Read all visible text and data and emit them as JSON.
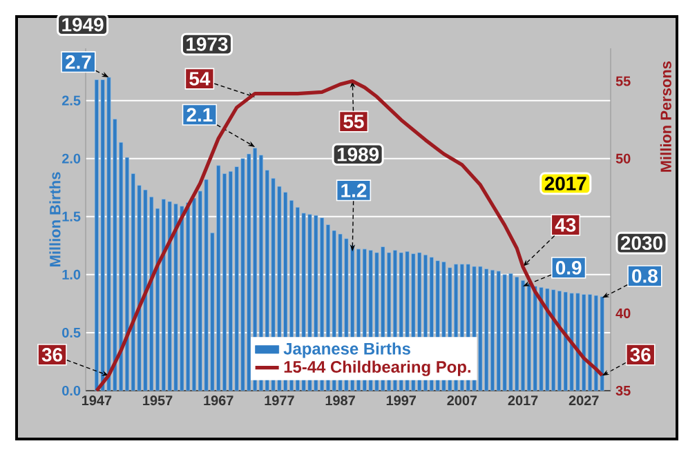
{
  "chart_data": {
    "type": "bar",
    "x": [
      1947,
      1948,
      1949,
      1950,
      1951,
      1952,
      1953,
      1954,
      1955,
      1956,
      1957,
      1958,
      1959,
      1960,
      1961,
      1962,
      1963,
      1964,
      1965,
      1966,
      1967,
      1968,
      1969,
      1970,
      1971,
      1972,
      1973,
      1974,
      1975,
      1976,
      1977,
      1978,
      1979,
      1980,
      1981,
      1982,
      1983,
      1984,
      1985,
      1986,
      1987,
      1988,
      1989,
      1990,
      1991,
      1992,
      1993,
      1994,
      1995,
      1996,
      1997,
      1998,
      1999,
      2000,
      2001,
      2002,
      2003,
      2004,
      2005,
      2006,
      2007,
      2008,
      2009,
      2010,
      2011,
      2012,
      2013,
      2014,
      2015,
      2016,
      2017,
      2018,
      2019,
      2020,
      2021,
      2022,
      2023,
      2024,
      2025,
      2026,
      2027,
      2028,
      2029,
      2030
    ],
    "series": [
      {
        "name": "Japanese Births",
        "color": "#2f7cc4",
        "values": [
          2.68,
          2.68,
          2.7,
          2.34,
          2.14,
          2.01,
          1.87,
          1.77,
          1.73,
          1.67,
          1.57,
          1.65,
          1.63,
          1.61,
          1.59,
          1.62,
          1.66,
          1.72,
          1.82,
          1.36,
          1.94,
          1.87,
          1.89,
          1.93,
          2.0,
          2.04,
          2.09,
          2.03,
          1.9,
          1.83,
          1.76,
          1.71,
          1.64,
          1.58,
          1.53,
          1.52,
          1.51,
          1.49,
          1.43,
          1.38,
          1.35,
          1.31,
          1.25,
          1.22,
          1.22,
          1.21,
          1.19,
          1.24,
          1.19,
          1.21,
          1.19,
          1.2,
          1.18,
          1.19,
          1.17,
          1.15,
          1.12,
          1.11,
          1.06,
          1.09,
          1.09,
          1.09,
          1.07,
          1.07,
          1.05,
          1.04,
          1.03,
          1.0,
          1.01,
          0.98,
          0.95,
          0.92,
          0.9,
          0.89,
          0.88,
          0.87,
          0.86,
          0.85,
          0.84,
          0.84,
          0.83,
          0.83,
          0.82,
          0.81
        ]
      },
      {
        "name": "15-44 Childbearing Pop.",
        "type": "line",
        "axis": "y2",
        "color": "#9e1b20",
        "x": [
          1947,
          1949,
          1951,
          1954,
          1957,
          1961,
          1964,
          1967,
          1970,
          1973,
          1975,
          1980,
          1984,
          1987,
          1989,
          1991,
          1993,
          1997,
          2001,
          2004,
          2007,
          2010,
          2012,
          2014,
          2016,
          2017,
          2019,
          2021,
          2023,
          2025,
          2027,
          2029,
          2030
        ],
        "values": [
          35,
          36,
          37.6,
          40.4,
          43.1,
          46.2,
          48.4,
          51.3,
          53.3,
          54.2,
          54.2,
          54.2,
          54.3,
          54.8,
          55,
          54.6,
          54,
          52.5,
          51.2,
          50.3,
          49.6,
          48.3,
          47,
          45.7,
          44.2,
          43,
          41.4,
          40.2,
          39.1,
          38.1,
          37.1,
          36.4,
          36
        ]
      }
    ],
    "ylabel": "Million Births",
    "y2label": "Million Persons",
    "xlim": [
      1945.2,
      2031.4
    ],
    "xticks": [
      1947,
      1957,
      1967,
      1977,
      1987,
      1997,
      2007,
      2017,
      2027
    ],
    "ylim": [
      0,
      2.95
    ],
    "yticks": [
      {
        "value": 0,
        "label": "0.0"
      },
      0.5,
      {
        "value": 1,
        "label": "1.0"
      },
      1.5,
      {
        "value": 2,
        "label": "2.0"
      },
      2.5
    ],
    "y2lim": [
      35,
      57.125
    ],
    "y2ticks": [
      35,
      40,
      50,
      55
    ],
    "grid": "y",
    "legend": "bottom",
    "annotations": [
      "1949",
      {
        "text": "2.7",
        "x": 1949,
        "y": 2.7
      },
      "1973",
      {
        "text": "54",
        "x": 1973,
        "y": 2.53
      },
      {
        "text": "2.1",
        "x": 1973,
        "y": 2.1
      },
      {
        "text": "55",
        "x": 1989,
        "y": 2.67
      },
      "1989",
      {
        "text": "1.2",
        "x": 1989,
        "y": 1.2
      },
      "2017",
      {
        "text": "43",
        "x": 2017,
        "y": 1.07
      },
      {
        "text": "0.9",
        "x": 2017,
        "y": 0.9
      },
      "2030",
      {
        "text": "0.8",
        "x": 2030,
        "y": 0.8
      },
      {
        "text": "36",
        "x": 2030,
        "y": 0.13
      },
      {
        "text": "36",
        "x": 1949,
        "y": 0.13
      }
    ]
  }
}
